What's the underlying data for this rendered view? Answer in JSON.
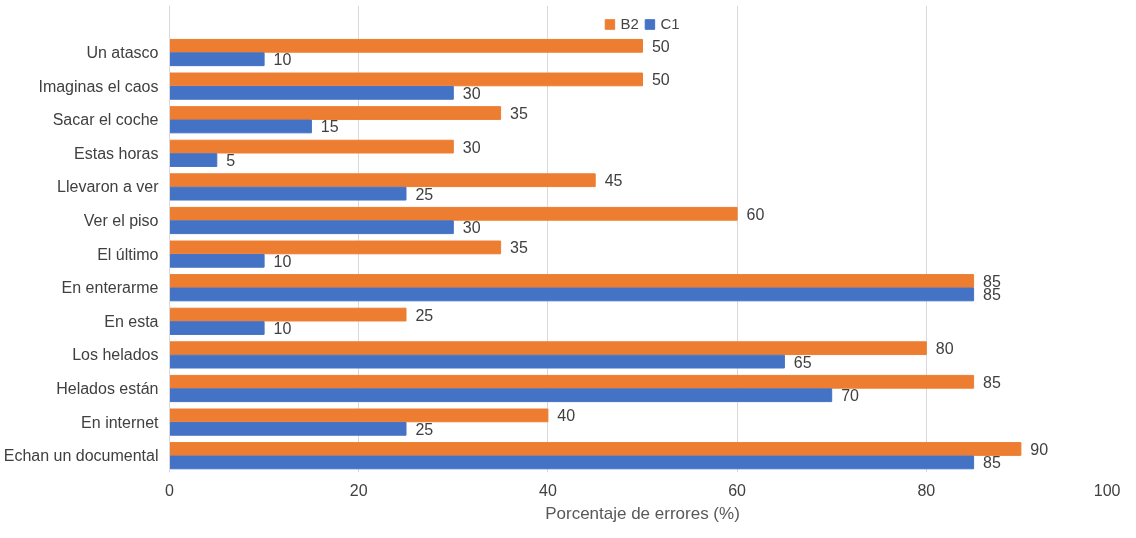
{
  "chart_data": {
    "type": "bar",
    "orientation": "horizontal",
    "xlabel": "Porcentaje de errores (%)",
    "categories": [
      "Un atasco",
      "Imaginas el caos",
      "Sacar el coche",
      "Estas horas",
      "Llevaron a ver",
      "Ver el piso",
      "El último",
      "En enterarme",
      "En esta",
      "Los helados",
      "Helados están",
      "En internet",
      "Echan un documental"
    ],
    "series": [
      {
        "name": "B2",
        "color": "#ed7d31",
        "values": [
          50,
          50,
          35,
          30,
          45,
          60,
          35,
          85,
          25,
          80,
          85,
          40,
          90
        ]
      },
      {
        "name": "C1",
        "color": "#4472c4",
        "values": [
          10,
          30,
          15,
          5,
          25,
          30,
          10,
          85,
          10,
          65,
          70,
          25,
          85
        ]
      }
    ],
    "xlim": [
      0,
      100
    ],
    "xticks": [
      0,
      20,
      40,
      60,
      80,
      100
    ],
    "grid": "x",
    "legend": "top",
    "data_labels": true
  }
}
